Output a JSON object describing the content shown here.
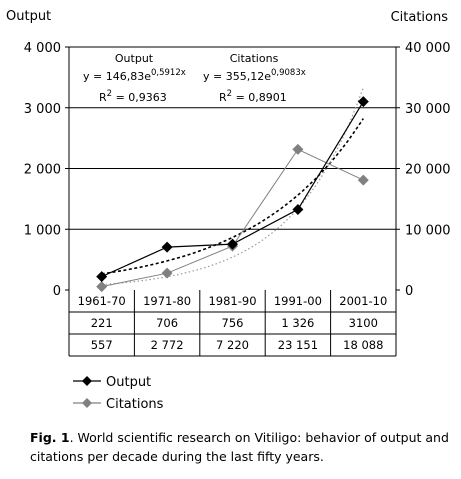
{
  "chart_data": {
    "type": "line",
    "categories": [
      "1961-70",
      "1971-80",
      "1981-90",
      "1991-00",
      "2001-10"
    ],
    "left_axis": {
      "label": "Output",
      "ylim": [
        0,
        4000
      ],
      "ticks": [
        0,
        1000,
        2000,
        3000,
        4000
      ],
      "tick_labels": [
        "0",
        "1 000",
        "2 000",
        "3 000",
        "4 000"
      ]
    },
    "right_axis": {
      "label": "Citations",
      "ylim": [
        0,
        40000
      ],
      "ticks": [
        0,
        10000,
        20000,
        30000,
        40000
      ],
      "tick_labels": [
        "0",
        "10 000",
        "20 000",
        "30 000",
        "40 000"
      ]
    },
    "series": [
      {
        "name": "Output",
        "axis": "left",
        "values": [
          221,
          706,
          756,
          1326,
          3100
        ],
        "color": "#000000",
        "marker": "diamond"
      },
      {
        "name": "Citations",
        "axis": "right",
        "values": [
          557,
          2772,
          7220,
          23151,
          18088
        ],
        "color": "#808080",
        "marker": "diamond"
      }
    ],
    "trendlines": [
      {
        "series": "Output",
        "type": "exponential",
        "a": 146.83,
        "b": 0.5912,
        "color": "#000000"
      },
      {
        "series": "Citations",
        "type": "exponential",
        "a": 355.12,
        "b": 0.9083,
        "color": "#999999"
      }
    ],
    "annotations": {
      "output_title": "Output",
      "output_eq_prefix": "y = 146,83e",
      "output_eq_exp": "0,5912x",
      "output_r2_prefix": "R",
      "output_r2_sup": "2",
      "output_r2_value": " = 0,9363",
      "citations_title": "Citations",
      "citations_eq_prefix": "y = 355,12e",
      "citations_eq_exp": "0,9083x",
      "citations_r2_prefix": "R",
      "citations_r2_sup": "2",
      "citations_r2_value": " = 0,8901"
    },
    "table": {
      "output_row": [
        "221",
        "706",
        "756",
        "1 326",
        "3100"
      ],
      "citations_row": [
        "557",
        "2 772",
        "7 220",
        "23 151",
        "18 088"
      ]
    },
    "grid": true,
    "legend_position": "bottom-left"
  },
  "caption": {
    "label": "Fig. 1",
    "text": ". World scientific research on Vitiligo: behavior of output and citations per decade during the last fifty years."
  }
}
